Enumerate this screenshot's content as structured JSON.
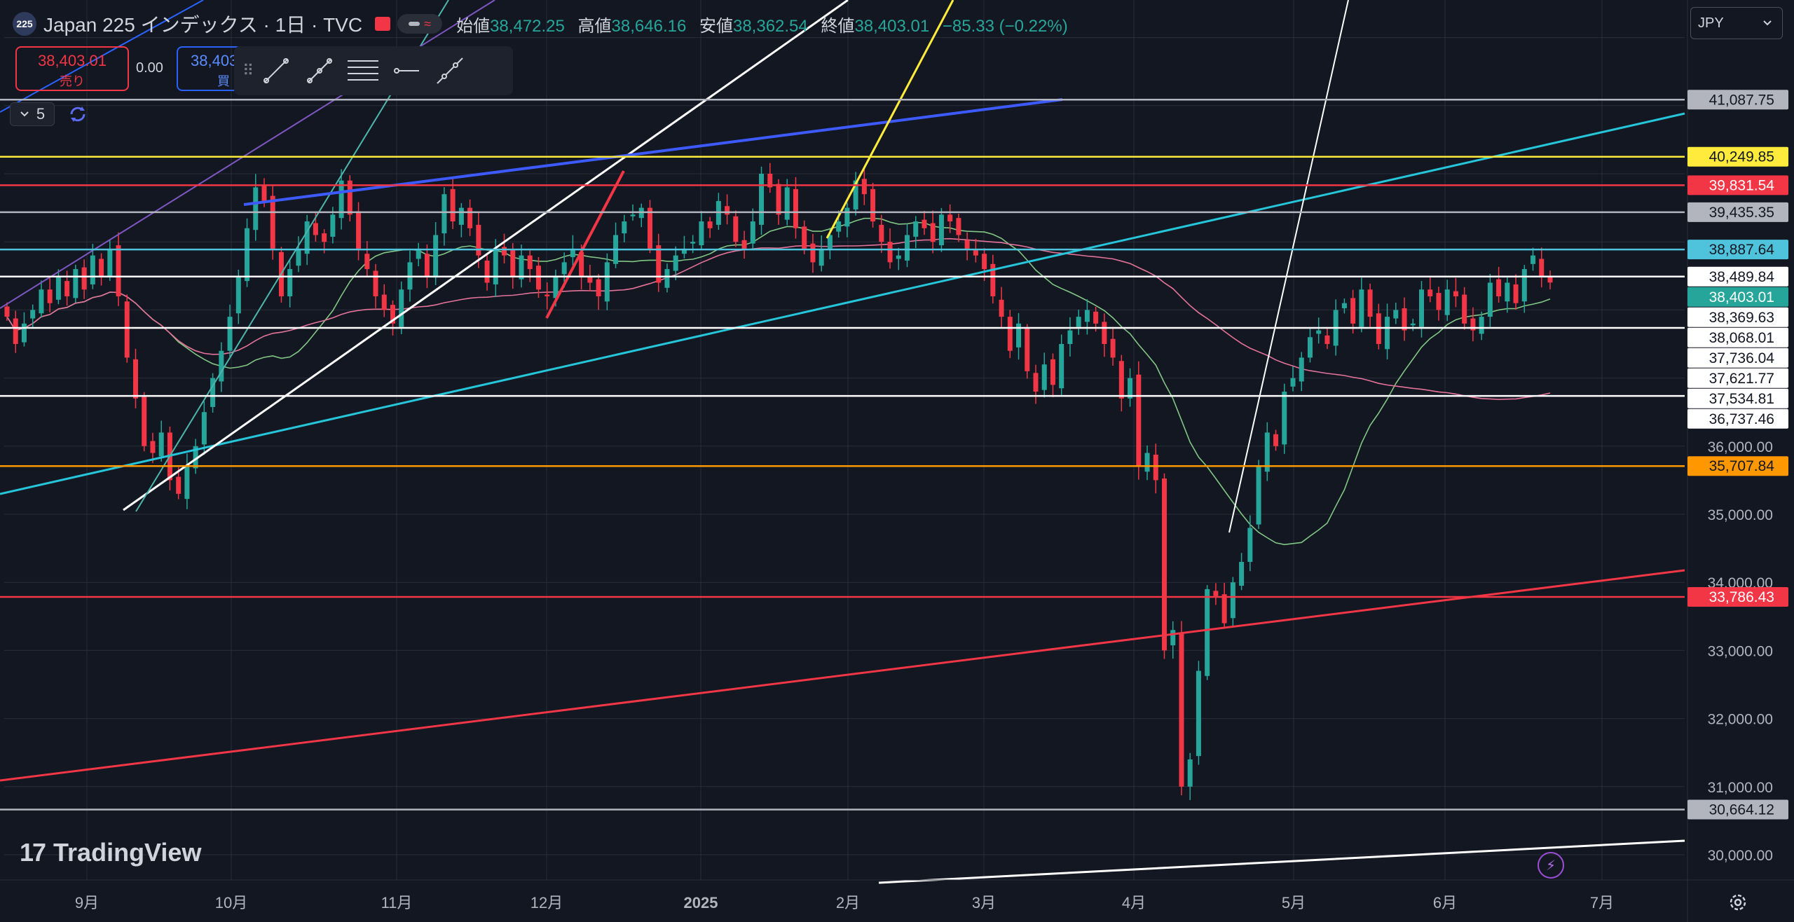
{
  "header": {
    "symbol_badge": "225",
    "title": "Japan 225 インデックス · 1日 · TVC",
    "open_label": "始値",
    "open": "38,472.25",
    "high_label": "高値",
    "high": "38,646.16",
    "low_label": "安値",
    "low": "38,362.54",
    "close_label": "終値",
    "close": "38,403.01",
    "change": "−85.33 (−0.22%)"
  },
  "trade": {
    "sell_price": "38,403.01",
    "sell_label": "売り",
    "spread": "0.00",
    "buy_price": "38,403.01",
    "buy_label": "買"
  },
  "interval_count": "5",
  "currency": "JPY",
  "logo_text": "TradingView",
  "toolbar": {
    "tools": [
      "trend-line-icon",
      "path-icon",
      "fib-lines-icon",
      "horizontal-ray-icon",
      "extended-line-icon"
    ]
  },
  "colors": {
    "up": "#26a69a",
    "down": "#f23645",
    "background": "#131722",
    "grid": "#2a2e39"
  },
  "chart_data": {
    "type": "candlestick",
    "y_axis_ticks": [
      "30,000.00",
      "31,000.00",
      "32,000.00",
      "33,000.00",
      "34,000.00",
      "35,000.00",
      "36,000.00"
    ],
    "x_axis_ticks": [
      "9月",
      "10月",
      "11月",
      "12月",
      "2025",
      "2月",
      "3月",
      "4月",
      "5月",
      "6月",
      "7月"
    ],
    "ylim": [
      29700,
      42550
    ],
    "price_labels": [
      {
        "value": 41087.75,
        "text": "41,087.75",
        "bg": "#b2b5be",
        "fg": "#131722"
      },
      {
        "value": 40249.85,
        "text": "40,249.85",
        "bg": "#ffeb3b",
        "fg": "#131722"
      },
      {
        "value": 39831.54,
        "text": "39,831.54",
        "bg": "#f23645",
        "fg": "#ffffff"
      },
      {
        "value": 39435.35,
        "text": "39,435.35",
        "bg": "#b2b5be",
        "fg": "#131722"
      },
      {
        "value": 38887.64,
        "text": "38,887.64",
        "bg": "#4fc3dc",
        "fg": "#131722"
      },
      {
        "value": 38489.84,
        "text": "38,489.84",
        "bg": "#ffffff",
        "fg": "#131722"
      },
      {
        "value": 38403.01,
        "text": "38,403.01",
        "bg": "#26a69a",
        "fg": "#ffffff"
      },
      {
        "value": 38369.63,
        "text": "38,369.63",
        "bg": "#ffffff",
        "fg": "#131722"
      },
      {
        "value": 38068.01,
        "text": "38,068.01",
        "bg": "#ffffff",
        "fg": "#131722"
      },
      {
        "value": 37736.04,
        "text": "37,736.04",
        "bg": "#ffffff",
        "fg": "#131722"
      },
      {
        "value": 37621.77,
        "text": "37,621.77",
        "bg": "#ffffff",
        "fg": "#131722"
      },
      {
        "value": 37534.81,
        "text": "37,534.81",
        "bg": "#ffffff",
        "fg": "#131722"
      },
      {
        "value": 36737.46,
        "text": "36,737.46",
        "bg": "#ffffff",
        "fg": "#131722"
      },
      {
        "value": 35707.84,
        "text": "35,707.84",
        "bg": "#ff9800",
        "fg": "#131722"
      },
      {
        "value": 33786.43,
        "text": "33,786.43",
        "bg": "#f23645",
        "fg": "#ffffff"
      },
      {
        "value": 30664.12,
        "text": "30,664.12",
        "bg": "#b2b5be",
        "fg": "#131722"
      }
    ],
    "horizontal_lines": [
      {
        "value": 41087.75,
        "color": "#b2b5be"
      },
      {
        "value": 40249.85,
        "color": "#ffeb3b"
      },
      {
        "value": 39831.54,
        "color": "#f23645"
      },
      {
        "value": 39435.35,
        "color": "#b2b5be"
      },
      {
        "value": 38887.64,
        "color": "#4fc3dc"
      },
      {
        "value": 38489.84,
        "color": "#ffffff"
      },
      {
        "value": 37736.04,
        "color": "#ffffff"
      },
      {
        "value": 36737.46,
        "color": "#ffffff"
      },
      {
        "value": 35707.84,
        "color": "#ff9800"
      },
      {
        "value": 33786.43,
        "color": "#f23645"
      },
      {
        "value": 30664.12,
        "color": "#b2b5be"
      }
    ],
    "closes": [
      37900,
      37500,
      37800,
      38000,
      38300,
      38100,
      38500,
      38200,
      38600,
      38300,
      38800,
      38500,
      38900,
      38200,
      37300,
      36700,
      36000,
      35900,
      36200,
      35500,
      35300,
      35700,
      36000,
      36500,
      37000,
      37400,
      37900,
      38500,
      39200,
      39800,
      39600,
      38900,
      38200,
      38600,
      38900,
      39300,
      39100,
      39000,
      39400,
      39900,
      39400,
      38900,
      38600,
      38200,
      38000,
      37800,
      38300,
      38700,
      38900,
      38500,
      39100,
      39700,
      39300,
      39500,
      39200,
      38800,
      38400,
      38900,
      38800,
      38500,
      38800,
      38600,
      38300,
      38200,
      38500,
      38700,
      38900,
      38500,
      38400,
      38200,
      38700,
      39100,
      39300,
      39400,
      39500,
      38900,
      38400,
      38600,
      38800,
      38900,
      39000,
      39300,
      39200,
      39600,
      39400,
      39000,
      38900,
      39300,
      40000,
      39800,
      39400,
      39800,
      39200,
      38900,
      38700,
      38900,
      39100,
      39300,
      39500,
      39900,
      39700,
      39300,
      39000,
      38700,
      38800,
      39100,
      39300,
      39200,
      39000,
      39400,
      39300,
      39100,
      38900,
      38800,
      38600,
      38200,
      37900,
      37400,
      37800,
      37100,
      36800,
      37200,
      36900,
      37500,
      37700,
      37900,
      38000,
      37800,
      37500,
      37300,
      36700,
      37000,
      35700,
      35900,
      35500,
      33000,
      33300,
      31000,
      31400,
      32700,
      33900,
      33800,
      33400,
      34000,
      34300,
      34800,
      35700,
      36200,
      36000,
      36800,
      37000,
      37300,
      37600,
      37700,
      37500,
      38000,
      38100,
      37800,
      38300,
      37900,
      37500,
      37900,
      38000,
      37700,
      37800,
      38300,
      38200,
      38000,
      38300,
      38200,
      37800,
      37700,
      37900,
      38400,
      38200,
      38400,
      38100,
      38600,
      38800,
      38500,
      38403
    ]
  }
}
